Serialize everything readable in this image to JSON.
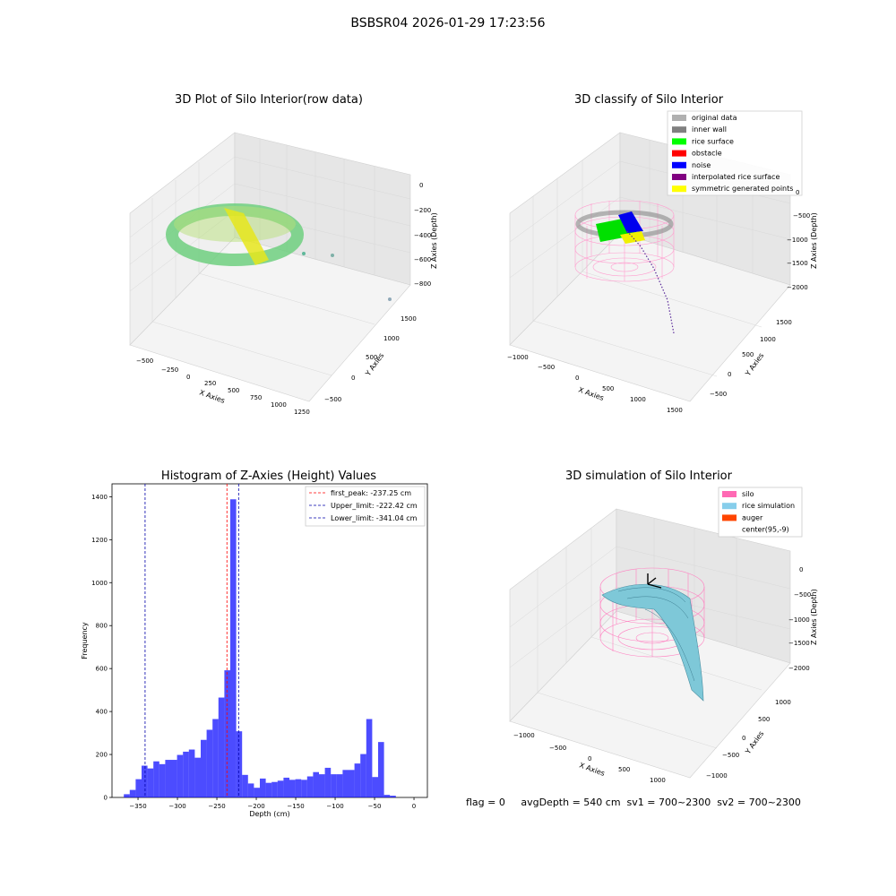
{
  "suptitle": "BSBSR04 2026-01-29 17:23:56",
  "panels": {
    "raw": {
      "title": "3D Plot of Silo Interior(row data)",
      "xlabel": "X Axies",
      "ylabel": "Y Axies",
      "zlabel": "Z Axies (Depth)",
      "xticks": [
        "−500",
        "−250",
        "0",
        "250",
        "500",
        "750",
        "1000",
        "1250"
      ],
      "yticks": [
        "−500",
        "0",
        "500",
        "1000",
        "1500"
      ],
      "zticks": [
        "0",
        "−200",
        "−400",
        "−600",
        "−800"
      ]
    },
    "classify": {
      "title": "3D classify of Silo Interior",
      "xlabel": "X Axies",
      "ylabel": "Y Axies",
      "zlabel": "Z Axies (Depth)",
      "xticks": [
        "−1000",
        "−500",
        "0",
        "500",
        "1000",
        "1500"
      ],
      "yticks": [
        "−500",
        "0",
        "500",
        "1000",
        "1500"
      ],
      "zticks": [
        "0",
        "−500",
        "−1000",
        "−1500",
        "−2000"
      ],
      "legend": [
        {
          "label": "original data",
          "color": "#b0b0b0"
        },
        {
          "label": "inner wall",
          "color": "#808080"
        },
        {
          "label": "rice surface",
          "color": "#00ff00"
        },
        {
          "label": "obstacle",
          "color": "#ff0000"
        },
        {
          "label": "noise",
          "color": "#0000ff"
        },
        {
          "label": "interpolated rice surface",
          "color": "#800080"
        },
        {
          "label": "symmetric generated points",
          "color": "#ffff00"
        }
      ]
    },
    "simulation": {
      "title": "3D simulation of Silo Interior",
      "xlabel": "X Axies",
      "ylabel": "Y Axies",
      "zlabel": "Z Axies (Depth)",
      "xticks": [
        "−1000",
        "−500",
        "0",
        "500",
        "1000"
      ],
      "yticks": [
        "−1000",
        "−500",
        "0",
        "500",
        "1000"
      ],
      "zticks": [
        "0",
        "−500",
        "−1000",
        "−1500",
        "−2000"
      ],
      "legend": [
        {
          "label": "silo",
          "color": "#ff69b4"
        },
        {
          "label": "rice simulation",
          "color": "#87ceeb"
        },
        {
          "label": "auger",
          "color": "#ff4500"
        },
        {
          "label": "center(95,-9)",
          "color": "#ffffff"
        }
      ]
    }
  },
  "chart_data": {
    "type": "bar",
    "title": "Histogram of Z-Axies (Height) Values",
    "xlabel": "Depth (cm)",
    "ylabel": "Frequency",
    "xlim": [
      -383,
      17
    ],
    "ylim": [
      0,
      1460
    ],
    "xticks": [
      -350,
      -300,
      -250,
      -200,
      -150,
      -100,
      -50,
      0
    ],
    "yticks": [
      0,
      200,
      400,
      600,
      800,
      1000,
      1200,
      1400
    ],
    "bin_width": 7.5,
    "bin_starts": [
      -368,
      -360.5,
      -353,
      -345.5,
      -338,
      -330.5,
      -323,
      -315.5,
      -308,
      -300.5,
      -293,
      -285.5,
      -278,
      -270.5,
      -263,
      -255.5,
      -248,
      -240.5,
      -233,
      -225.5,
      -218,
      -210.5,
      -203,
      -195.5,
      -188,
      -180.5,
      -173,
      -165.5,
      -158,
      -150.5,
      -143,
      -135.5,
      -128,
      -120.5,
      -113,
      -105.5,
      -98,
      -90.5,
      -83,
      -75.5,
      -68,
      -60.5,
      -53,
      -45.5,
      -38,
      -30.5
    ],
    "values": [
      15,
      35,
      85,
      148,
      135,
      168,
      155,
      175,
      175,
      198,
      213,
      223,
      185,
      268,
      315,
      365,
      465,
      592,
      1388,
      308,
      105,
      65,
      45,
      88,
      68,
      72,
      78,
      92,
      82,
      85,
      82,
      98,
      118,
      108,
      138,
      108,
      108,
      128,
      128,
      158,
      202,
      365,
      95,
      258,
      12,
      8
    ],
    "bar_color": "#0000ff",
    "bar_alpha": 0.7,
    "vlines": [
      {
        "x": -237.25,
        "color": "#ff0000",
        "label": "first_peak: -237.25 cm"
      },
      {
        "x": -222.42,
        "color": "#0000aa",
        "label": "Upper_limit: -222.42 cm"
      },
      {
        "x": -341.04,
        "color": "#0000aa",
        "label": "Lower_limit: -341.04 cm"
      }
    ],
    "legend_position": "top-right"
  },
  "footer": {
    "text": "flag = 0     avgDepth = 540 cm  sv1 = 700~2300  sv2 = 700~2300"
  }
}
